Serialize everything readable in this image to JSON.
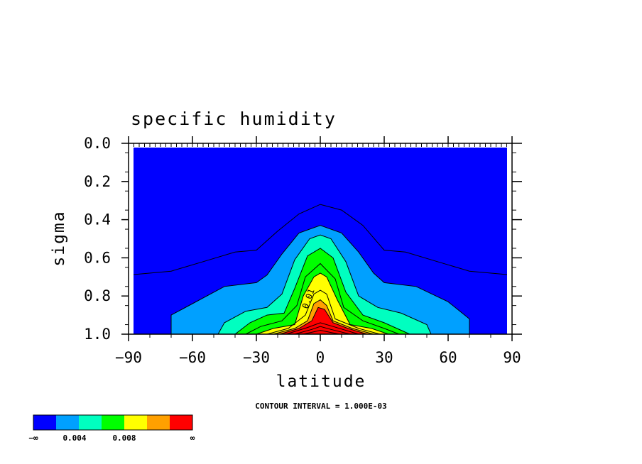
{
  "chart_data": {
    "type": "filled-contour",
    "title": "specific humidity",
    "xlabel": "latitude",
    "ylabel": "sigma",
    "xlim": [
      -90,
      90
    ],
    "ylim": [
      1.0,
      0.0
    ],
    "y_axis_inverted": true,
    "x_ticks": [
      -90,
      -60,
      -30,
      0,
      30,
      60,
      90
    ],
    "x_tick_labels": [
      "−90",
      "−60",
      "−30",
      "0",
      "30",
      "60",
      "90"
    ],
    "y_ticks": [
      0.0,
      0.2,
      0.4,
      0.6,
      0.8,
      1.0
    ],
    "y_tick_labels": [
      "0.0",
      "0.2",
      "0.4",
      "0.6",
      "0.8",
      "1.0"
    ],
    "contour_interval_text": "CONTOUR INTERVAL = 1.000E-03",
    "contour_label": "0.01",
    "colorbar": {
      "colors": [
        "#0000ff",
        "#00a0ff",
        "#00ffc0",
        "#00ff00",
        "#ffff00",
        "#ffa000",
        "#ff0000"
      ],
      "labels": [
        "−∞",
        "0.004",
        "0.008",
        "∞"
      ]
    },
    "levels": [
      {
        "value": 0.001,
        "line_only": true,
        "boundary": [
          [
            -90,
            0.69
          ],
          [
            -70,
            0.67
          ],
          [
            -55,
            0.62
          ],
          [
            -40,
            0.57
          ],
          [
            -30,
            0.56
          ],
          [
            -20,
            0.46
          ],
          [
            -10,
            0.37
          ],
          [
            0,
            0.32
          ],
          [
            10,
            0.35
          ],
          [
            20,
            0.43
          ],
          [
            30,
            0.56
          ],
          [
            40,
            0.57
          ],
          [
            55,
            0.62
          ],
          [
            70,
            0.67
          ],
          [
            90,
            0.69
          ]
        ]
      },
      {
        "value": 0.002,
        "color": "#00a0ff",
        "boundary": [
          [
            -70,
            1.0
          ],
          [
            -70,
            0.9
          ],
          [
            -60,
            0.84
          ],
          [
            -45,
            0.75
          ],
          [
            -30,
            0.73
          ],
          [
            -25,
            0.69
          ],
          [
            -18,
            0.58
          ],
          [
            -10,
            0.47
          ],
          [
            0,
            0.43
          ],
          [
            10,
            0.47
          ],
          [
            18,
            0.57
          ],
          [
            25,
            0.68
          ],
          [
            30,
            0.73
          ],
          [
            45,
            0.75
          ],
          [
            60,
            0.83
          ],
          [
            70,
            0.92
          ],
          [
            70,
            1.0
          ]
        ]
      },
      {
        "value": 0.003,
        "color": "#00ffc0",
        "boundary": [
          [
            -48,
            1.0
          ],
          [
            -45,
            0.94
          ],
          [
            -35,
            0.88
          ],
          [
            -25,
            0.86
          ],
          [
            -18,
            0.79
          ],
          [
            -12,
            0.61
          ],
          [
            -5,
            0.5
          ],
          [
            0,
            0.48
          ],
          [
            5,
            0.5
          ],
          [
            12,
            0.62
          ],
          [
            18,
            0.8
          ],
          [
            27,
            0.86
          ],
          [
            38,
            0.89
          ],
          [
            50,
            0.95
          ],
          [
            52,
            1.0
          ]
        ]
      },
      {
        "value": 0.004,
        "color": "#00ff00",
        "boundary": [
          [
            -40,
            1.0
          ],
          [
            -33,
            0.94
          ],
          [
            -25,
            0.9
          ],
          [
            -17,
            0.89
          ],
          [
            -12,
            0.76
          ],
          [
            -6,
            0.59
          ],
          [
            0,
            0.55
          ],
          [
            6,
            0.6
          ],
          [
            12,
            0.78
          ],
          [
            20,
            0.9
          ],
          [
            30,
            0.94
          ],
          [
            42,
            1.0
          ]
        ]
      },
      {
        "value": 0.005,
        "color": "#00ff00",
        "boundary": [
          [
            -35,
            1.0
          ],
          [
            -28,
            0.96
          ],
          [
            -18,
            0.93
          ],
          [
            -11,
            0.85
          ],
          [
            -7,
            0.7
          ],
          [
            0,
            0.63
          ],
          [
            7,
            0.71
          ],
          [
            11,
            0.86
          ],
          [
            20,
            0.93
          ],
          [
            30,
            0.97
          ],
          [
            37,
            1.0
          ]
        ]
      },
      {
        "value": 0.006,
        "color": "#ffff00",
        "boundary": [
          [
            -30,
            1.0
          ],
          [
            -22,
            0.97
          ],
          [
            -12,
            0.95
          ],
          [
            -8,
            0.8
          ],
          [
            -3,
            0.7
          ],
          [
            0,
            0.68
          ],
          [
            3,
            0.7
          ],
          [
            8,
            0.82
          ],
          [
            14,
            0.95
          ],
          [
            24,
            0.97
          ],
          [
            32,
            1.0
          ]
        ]
      },
      {
        "value": 0.007,
        "color": "#ffff00",
        "boundary": [
          [
            -25,
            1.0
          ],
          [
            -15,
            0.97
          ],
          [
            -7,
            0.9
          ],
          [
            -3,
            0.79
          ],
          [
            0,
            0.77
          ],
          [
            3,
            0.79
          ],
          [
            7,
            0.92
          ],
          [
            18,
            0.97
          ],
          [
            28,
            1.0
          ]
        ]
      },
      {
        "value": 0.008,
        "color": "#ffa000",
        "boundary": [
          [
            -22,
            1.0
          ],
          [
            -12,
            0.97
          ],
          [
            -6,
            0.93
          ],
          [
            -3,
            0.84
          ],
          [
            0,
            0.82
          ],
          [
            3,
            0.85
          ],
          [
            6,
            0.93
          ],
          [
            15,
            0.97
          ],
          [
            25,
            1.0
          ]
        ]
      },
      {
        "value": 0.009,
        "color": "#ff0000",
        "boundary": [
          [
            -19,
            1.0
          ],
          [
            -10,
            0.97
          ],
          [
            -4,
            0.93
          ],
          [
            -1,
            0.86
          ],
          [
            2,
            0.87
          ],
          [
            6,
            0.94
          ],
          [
            13,
            0.97
          ],
          [
            22,
            1.0
          ]
        ]
      },
      {
        "value": 0.01,
        "color": "#ff0000",
        "boundary": [
          [
            -16,
            1.0
          ],
          [
            -6,
            0.965
          ],
          [
            0,
            0.94
          ],
          [
            6,
            0.96
          ],
          [
            18,
            1.0
          ]
        ]
      },
      {
        "value": 0.011,
        "color": "#ff0000",
        "boundary": [
          [
            -12,
            1.0
          ],
          [
            -4,
            0.975
          ],
          [
            0,
            0.96
          ],
          [
            5,
            0.975
          ],
          [
            14,
            1.0
          ]
        ]
      },
      {
        "value": 0.012,
        "color": "#ff0000",
        "boundary": [
          [
            -8,
            1.0
          ],
          [
            0,
            0.98
          ],
          [
            9,
            1.0
          ]
        ]
      }
    ]
  }
}
